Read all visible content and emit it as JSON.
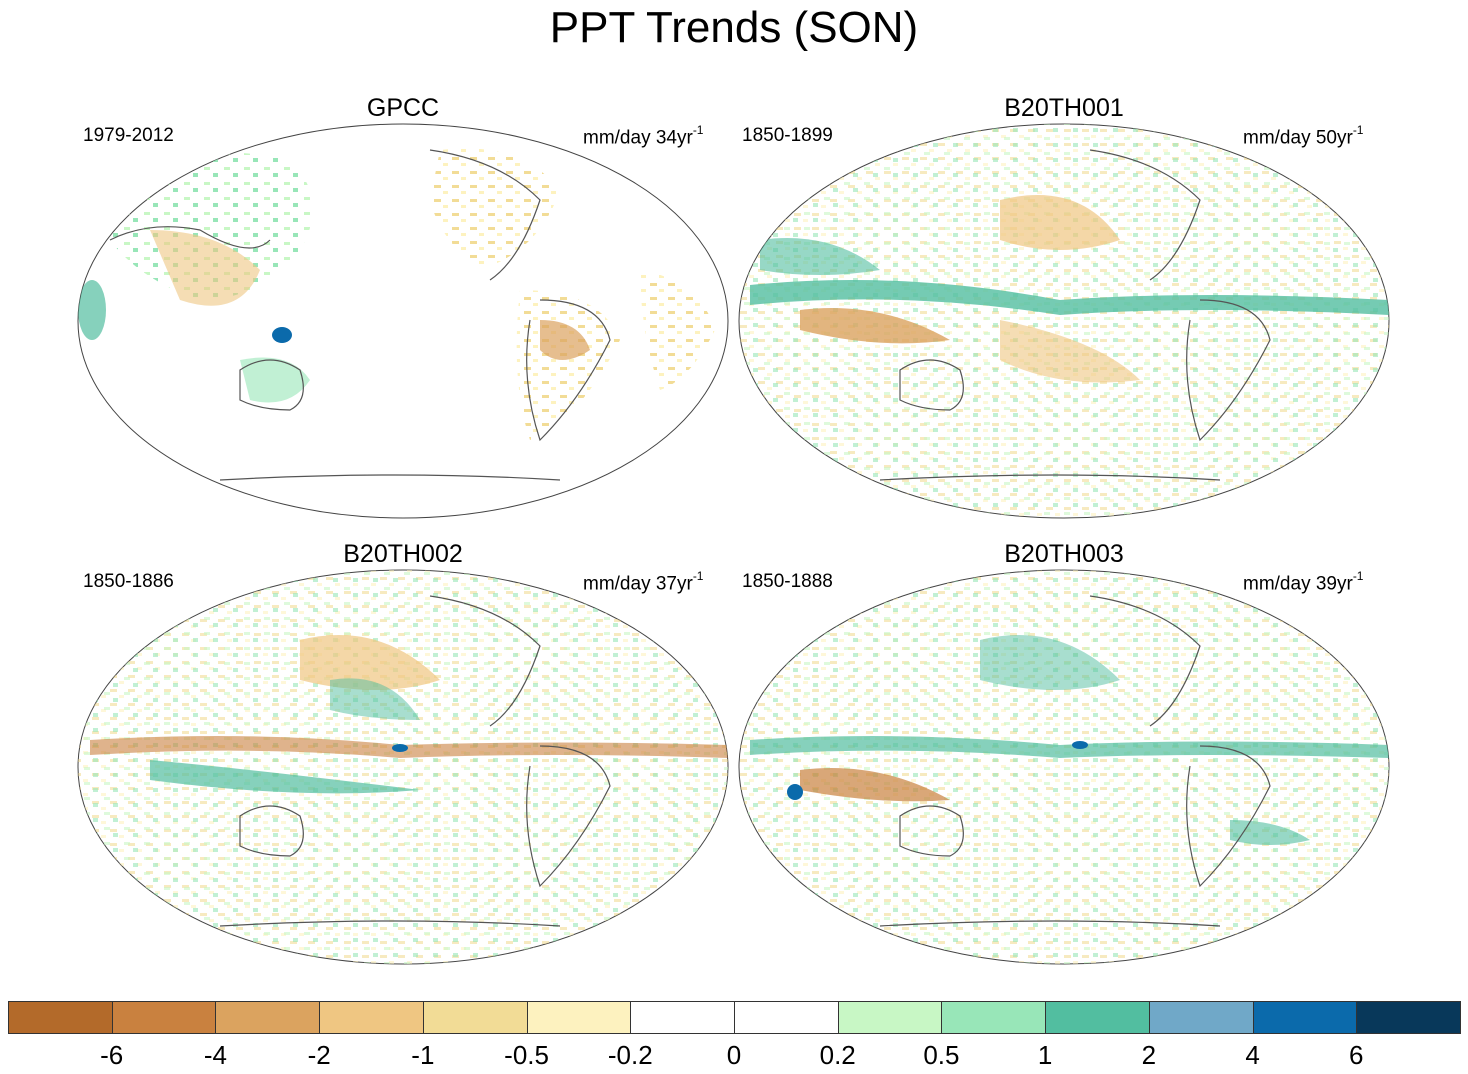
{
  "title": "PPT Trends (SON)",
  "panels": [
    {
      "name": "GPCC",
      "period": "1979-2012",
      "unit": "mm/day 34yr",
      "unit_exp": "-1"
    },
    {
      "name": "B20TH001",
      "period": "1850-1899",
      "unit": "mm/day 50yr",
      "unit_exp": "-1"
    },
    {
      "name": "B20TH002",
      "period": "1850-1886",
      "unit": "mm/day 37yr",
      "unit_exp": "-1"
    },
    {
      "name": "B20TH003",
      "period": "1850-1888",
      "unit": "mm/day 39yr",
      "unit_exp": "-1"
    }
  ],
  "colorbar": {
    "colors": [
      "#b36a2a",
      "#c9813f",
      "#dba35f",
      "#efc682",
      "#f2dc96",
      "#fdf2bf",
      "#ffffff",
      "#ffffff",
      "#c8f7c5",
      "#98e6b8",
      "#52bea0",
      "#70a8c8",
      "#0b6aab",
      "#08385a"
    ],
    "labels": [
      "-6",
      "-4",
      "-2",
      "-1",
      "-0.5",
      "-0.2",
      "0",
      "0.2",
      "0.5",
      "1",
      "2",
      "4",
      "6"
    ]
  }
}
